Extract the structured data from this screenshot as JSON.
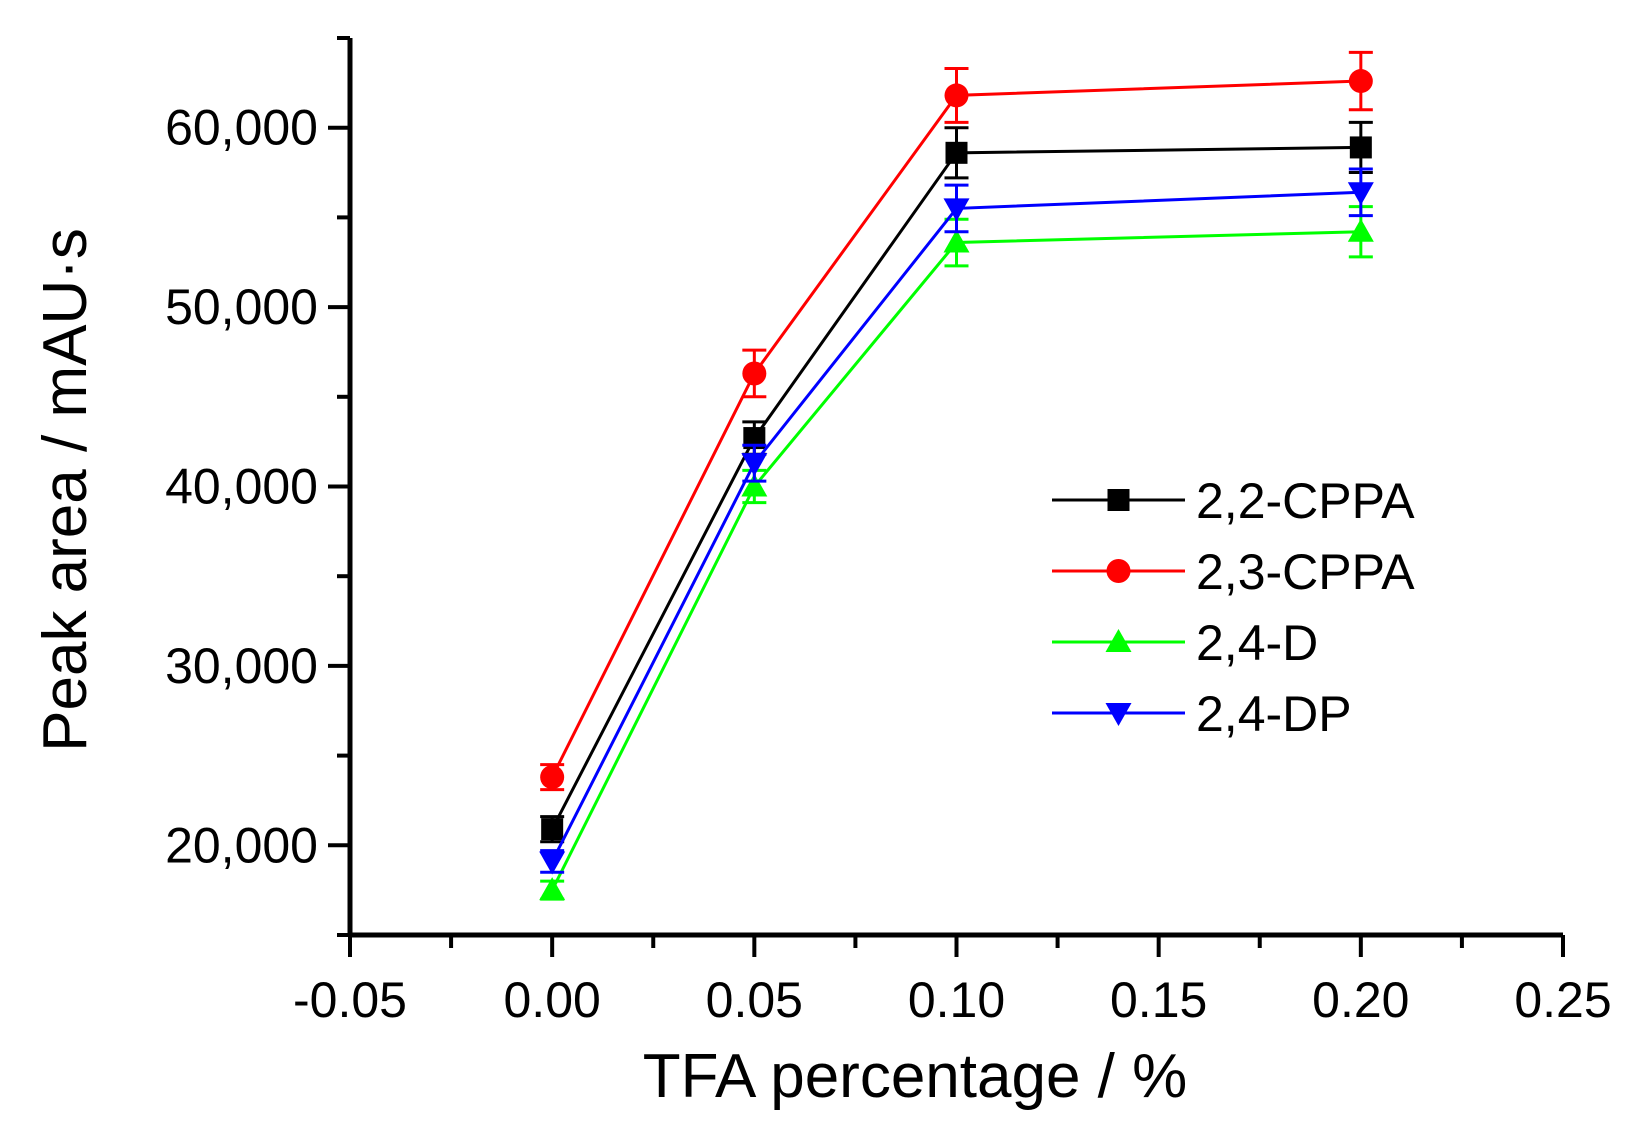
{
  "chart_data": {
    "type": "line",
    "title": "",
    "xlabel": "TFA percentage / %",
    "ylabel": "Peak area / mAU·s",
    "xlim": [
      -0.05,
      0.25
    ],
    "ylim": [
      15000,
      65000
    ],
    "x_ticks": [
      -0.05,
      0.0,
      0.05,
      0.1,
      0.15,
      0.2,
      0.25
    ],
    "x_tick_labels": [
      "-0.05",
      "0.00",
      "0.05",
      "0.10",
      "0.15",
      "0.20",
      "0.25"
    ],
    "y_ticks": [
      20000,
      30000,
      40000,
      50000,
      60000
    ],
    "y_tick_labels": [
      "20,000",
      "30,000",
      "40,000",
      "50,000",
      "60,000"
    ],
    "grid": false,
    "legend_position": "right",
    "x": [
      0.0,
      0.05,
      0.1,
      0.2
    ],
    "series": [
      {
        "name": "2,2-CPPA",
        "color": "#000000",
        "marker": "square",
        "values": [
          20900,
          42700,
          58600,
          58900
        ],
        "errors": [
          700,
          900,
          1400,
          1400
        ]
      },
      {
        "name": "2,3-CPPA",
        "color": "#ff0000",
        "marker": "circle",
        "values": [
          23800,
          46300,
          61800,
          62600
        ],
        "errors": [
          700,
          1300,
          1500,
          1600
        ]
      },
      {
        "name": "2,4-D",
        "color": "#00ff00",
        "marker": "triangle-up",
        "values": [
          17500,
          40000,
          53600,
          54200
        ],
        "errors": [
          500,
          900,
          1300,
          1400
        ]
      },
      {
        "name": "2,4-DP",
        "color": "#0000ff",
        "marker": "triangle-down",
        "values": [
          19100,
          41300,
          55500,
          56400
        ],
        "errors": [
          600,
          1000,
          1300,
          1300
        ]
      }
    ]
  }
}
